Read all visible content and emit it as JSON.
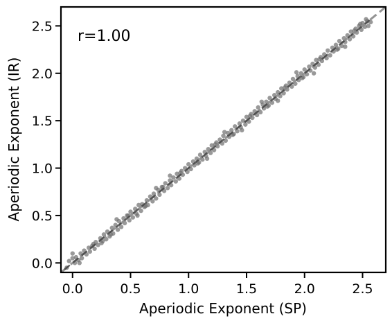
{
  "chart_data": {
    "type": "scatter",
    "xlabel": "Aperiodic Exponent (SP)",
    "ylabel": "Aperiodic Exponent (IR)",
    "annotation": "r=1.00",
    "xlim": [
      -0.1,
      2.7
    ],
    "ylim": [
      -0.1,
      2.7
    ],
    "xticks": [
      0.0,
      0.5,
      1.0,
      1.5,
      2.0,
      2.5
    ],
    "yticks": [
      0.0,
      0.5,
      1.0,
      1.5,
      2.0,
      2.5
    ],
    "xtick_labels": [
      "0.0",
      "0.5",
      "1.0",
      "1.5",
      "2.0",
      "2.5"
    ],
    "ytick_labels": [
      "0.0",
      "0.5",
      "1.0",
      "1.5",
      "2.0",
      "2.5"
    ],
    "point_color": "#6e6e6e",
    "identity_line_color": "#888888",
    "fit_line_color": "#444444",
    "grid": false,
    "points": [
      [
        -0.05,
        -0.05
      ],
      [
        -0.03,
        0.02
      ],
      [
        0.0,
        0.05
      ],
      [
        0.02,
        0.0
      ],
      [
        0.0,
        0.1
      ],
      [
        0.03,
        0.06
      ],
      [
        0.05,
        0.03
      ],
      [
        0.07,
        0.1
      ],
      [
        0.08,
        0.05
      ],
      [
        0.1,
        0.13
      ],
      [
        0.12,
        0.09
      ],
      [
        0.14,
        0.16
      ],
      [
        0.15,
        0.12
      ],
      [
        0.17,
        0.18
      ],
      [
        0.19,
        0.15
      ],
      [
        0.2,
        0.22
      ],
      [
        0.22,
        0.19
      ],
      [
        0.24,
        0.26
      ],
      [
        0.25,
        0.21
      ],
      [
        0.27,
        0.3
      ],
      [
        0.29,
        0.25
      ],
      [
        0.3,
        0.33
      ],
      [
        0.32,
        0.28
      ],
      [
        0.34,
        0.37
      ],
      [
        0.35,
        0.31
      ],
      [
        0.37,
        0.4
      ],
      [
        0.39,
        0.35
      ],
      [
        0.4,
        0.44
      ],
      [
        0.42,
        0.38
      ],
      [
        0.44,
        0.47
      ],
      [
        0.45,
        0.42
      ],
      [
        0.47,
        0.5
      ],
      [
        0.49,
        0.45
      ],
      [
        0.5,
        0.54
      ],
      [
        0.52,
        0.48
      ],
      [
        0.54,
        0.57
      ],
      [
        0.55,
        0.52
      ],
      [
        0.57,
        0.61
      ],
      [
        0.59,
        0.55
      ],
      [
        0.6,
        0.62
      ],
      [
        0.62,
        0.59
      ],
      [
        0.64,
        0.66
      ],
      [
        0.65,
        0.61
      ],
      [
        0.67,
        0.7
      ],
      [
        0.69,
        0.65
      ],
      [
        0.7,
        0.73
      ],
      [
        0.72,
        0.68
      ],
      [
        0.74,
        0.77
      ],
      [
        0.75,
        0.72
      ],
      [
        0.77,
        0.8
      ],
      [
        0.79,
        0.76
      ],
      [
        0.8,
        0.84
      ],
      [
        0.82,
        0.79
      ],
      [
        0.84,
        0.87
      ],
      [
        0.85,
        0.82
      ],
      [
        0.87,
        0.9
      ],
      [
        0.89,
        0.86
      ],
      [
        0.9,
        0.94
      ],
      [
        0.92,
        0.89
      ],
      [
        0.94,
        0.97
      ],
      [
        0.95,
        0.93
      ],
      [
        0.97,
        1.0
      ],
      [
        0.99,
        0.96
      ],
      [
        1.0,
        1.04
      ],
      [
        1.02,
        0.99
      ],
      [
        1.04,
        1.07
      ],
      [
        1.05,
        1.03
      ],
      [
        1.07,
        1.1
      ],
      [
        1.09,
        1.06
      ],
      [
        1.1,
        1.14
      ],
      [
        1.12,
        1.09
      ],
      [
        1.14,
        1.17
      ],
      [
        1.15,
        1.13
      ],
      [
        1.17,
        1.2
      ],
      [
        1.19,
        1.16
      ],
      [
        1.2,
        1.24
      ],
      [
        1.22,
        1.19
      ],
      [
        1.24,
        1.27
      ],
      [
        1.25,
        1.23
      ],
      [
        1.27,
        1.3
      ],
      [
        1.29,
        1.26
      ],
      [
        1.3,
        1.34
      ],
      [
        1.32,
        1.29
      ],
      [
        1.34,
        1.37
      ],
      [
        1.35,
        1.33
      ],
      [
        1.37,
        1.4
      ],
      [
        1.39,
        1.36
      ],
      [
        1.4,
        1.44
      ],
      [
        1.42,
        1.39
      ],
      [
        1.44,
        1.47
      ],
      [
        1.45,
        1.43
      ],
      [
        1.47,
        1.5
      ],
      [
        1.49,
        1.46
      ],
      [
        1.5,
        1.54
      ],
      [
        1.52,
        1.49
      ],
      [
        1.54,
        1.57
      ],
      [
        1.55,
        1.53
      ],
      [
        1.57,
        1.6
      ],
      [
        1.59,
        1.56
      ],
      [
        1.6,
        1.64
      ],
      [
        1.62,
        1.59
      ],
      [
        1.64,
        1.67
      ],
      [
        1.65,
        1.63
      ],
      [
        1.67,
        1.7
      ],
      [
        1.69,
        1.66
      ],
      [
        1.7,
        1.74
      ],
      [
        1.72,
        1.69
      ],
      [
        1.74,
        1.77
      ],
      [
        1.75,
        1.73
      ],
      [
        1.77,
        1.8
      ],
      [
        1.79,
        1.76
      ],
      [
        1.8,
        1.84
      ],
      [
        1.82,
        1.79
      ],
      [
        1.84,
        1.87
      ],
      [
        1.85,
        1.83
      ],
      [
        1.87,
        1.9
      ],
      [
        1.89,
        1.86
      ],
      [
        1.9,
        1.94
      ],
      [
        1.92,
        1.89
      ],
      [
        1.94,
        1.97
      ],
      [
        1.95,
        1.93
      ],
      [
        1.97,
        2.0
      ],
      [
        1.99,
        1.96
      ],
      [
        2.0,
        2.04
      ],
      [
        2.02,
        1.99
      ],
      [
        2.04,
        2.07
      ],
      [
        2.05,
        2.03
      ],
      [
        2.07,
        2.1
      ],
      [
        2.09,
        2.06
      ],
      [
        2.1,
        2.14
      ],
      [
        2.12,
        2.09
      ],
      [
        2.14,
        2.17
      ],
      [
        2.15,
        2.13
      ],
      [
        2.17,
        2.2
      ],
      [
        2.19,
        2.16
      ],
      [
        2.2,
        2.24
      ],
      [
        2.22,
        2.19
      ],
      [
        2.24,
        2.27
      ],
      [
        2.25,
        2.23
      ],
      [
        2.27,
        2.3
      ],
      [
        2.29,
        2.26
      ],
      [
        2.3,
        2.34
      ],
      [
        2.32,
        2.29
      ],
      [
        2.34,
        2.37
      ],
      [
        2.35,
        2.33
      ],
      [
        2.37,
        2.4
      ],
      [
        2.39,
        2.36
      ],
      [
        2.4,
        2.44
      ],
      [
        2.42,
        2.39
      ],
      [
        2.44,
        2.47
      ],
      [
        2.45,
        2.43
      ],
      [
        2.47,
        2.5
      ],
      [
        2.49,
        2.46
      ],
      [
        2.5,
        2.53
      ],
      [
        2.52,
        2.49
      ],
      [
        2.54,
        2.55
      ],
      [
        2.55,
        2.5
      ],
      [
        2.57,
        2.54
      ],
      [
        2.53,
        2.57
      ],
      [
        2.48,
        2.52
      ],
      [
        0.06,
        0.0
      ],
      [
        0.18,
        0.2
      ],
      [
        0.33,
        0.3
      ],
      [
        0.48,
        0.5
      ],
      [
        0.63,
        0.6
      ],
      [
        0.78,
        0.8
      ],
      [
        0.93,
        0.95
      ],
      [
        1.08,
        1.05
      ],
      [
        1.23,
        1.25
      ],
      [
        1.38,
        1.35
      ],
      [
        1.53,
        1.55
      ],
      [
        1.68,
        1.65
      ],
      [
        1.83,
        1.85
      ],
      [
        1.98,
        1.95
      ],
      [
        2.13,
        2.15
      ],
      [
        2.28,
        2.25
      ],
      [
        2.43,
        2.45
      ],
      [
        0.38,
        0.46
      ],
      [
        0.72,
        0.79
      ],
      [
        1.16,
        1.1
      ],
      [
        1.63,
        1.7
      ],
      [
        2.08,
        2.0
      ],
      [
        0.26,
        0.23
      ],
      [
        0.84,
        0.92
      ],
      [
        1.46,
        1.4
      ],
      [
        1.93,
        2.01
      ],
      [
        2.35,
        2.28
      ],
      [
        0.56,
        0.5
      ],
      [
        1.31,
        1.38
      ],
      [
        1.77,
        1.71
      ]
    ]
  }
}
